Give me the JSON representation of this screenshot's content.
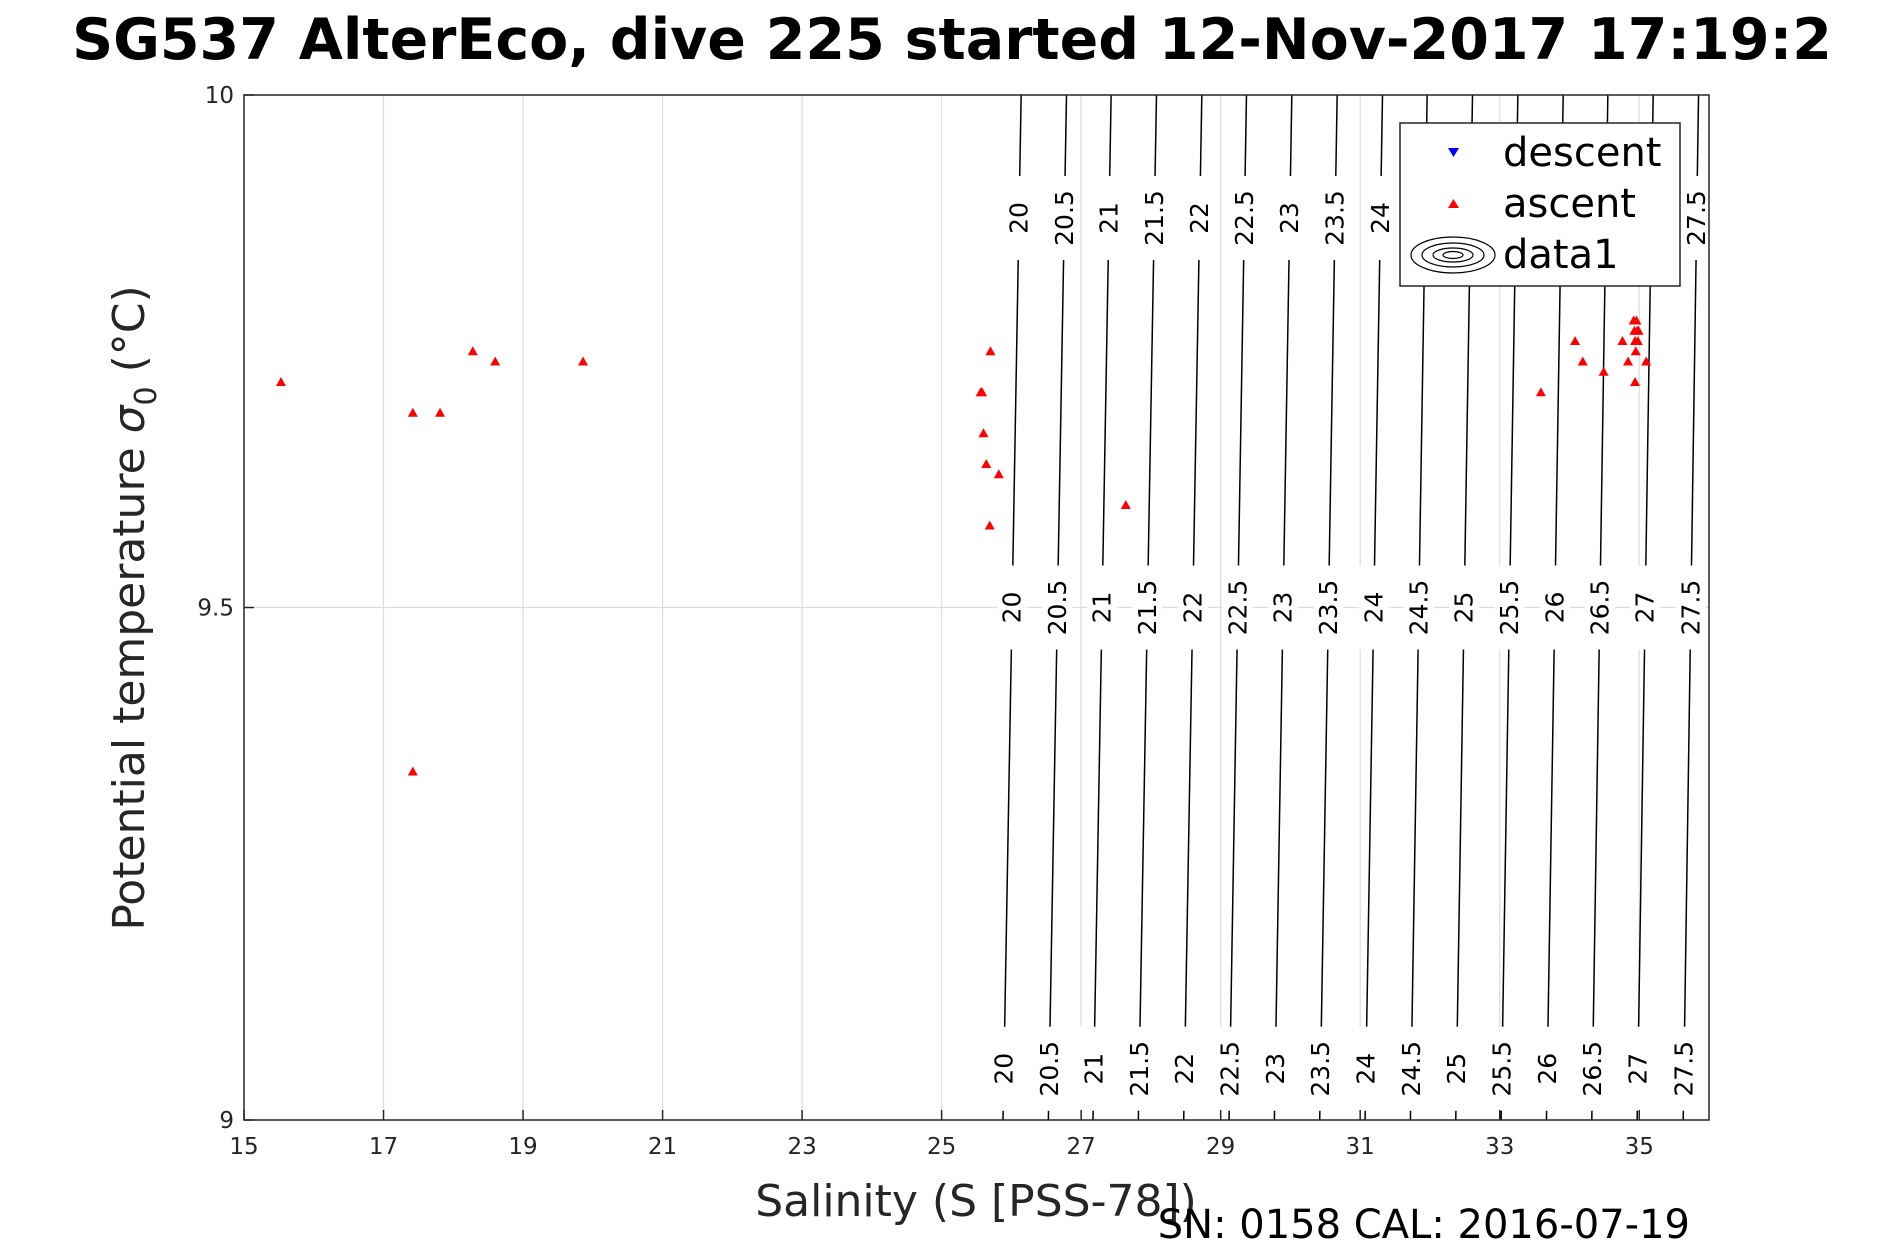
{
  "chart_data": {
    "type": "scatter",
    "title": "SG537 AlterEco, dive 225 started 12-Nov-2017 17:19:2",
    "xlabel": "Salinity (S [PSS-78])",
    "ylabel_main": "Potential temperature",
    "ylabel_sigma": "σ",
    "ylabel_sub": "0",
    "ylabel_unit": "(°C)",
    "footer": "SN: 0158  CAL: 2016-07-19",
    "xlim": [
      15,
      36
    ],
    "ylim": [
      9,
      10
    ],
    "x_ticks": [
      15,
      17,
      19,
      21,
      23,
      25,
      27,
      29,
      31,
      33,
      35
    ],
    "y_ticks": [
      9,
      9.5,
      10
    ],
    "y_tick_labels": [
      "9",
      "9.5",
      "10"
    ],
    "grid": true,
    "legend": {
      "position": "top-right",
      "entries": [
        {
          "label": "descent",
          "marker": "triangle-down",
          "color": "#0000ff"
        },
        {
          "label": "ascent",
          "marker": "triangle-up",
          "color": "#ff0000"
        },
        {
          "label": "data1",
          "marker": "contour"
        }
      ]
    },
    "series": [
      {
        "name": "descent",
        "marker": "triangle-down",
        "color": "#0000ff",
        "points": []
      },
      {
        "name": "ascent",
        "marker": "triangle-up",
        "color": "#ff0000",
        "points": [
          [
            15.53,
            9.72
          ],
          [
            17.42,
            9.69
          ],
          [
            17.81,
            9.69
          ],
          [
            18.28,
            9.75
          ],
          [
            18.6,
            9.74
          ],
          [
            19.86,
            9.74
          ],
          [
            17.42,
            9.34
          ],
          [
            25.7,
            9.75
          ],
          [
            25.58,
            9.71
          ],
          [
            25.56,
            9.71
          ],
          [
            25.6,
            9.67
          ],
          [
            25.64,
            9.64
          ],
          [
            25.82,
            9.63
          ],
          [
            25.69,
            9.58
          ],
          [
            27.64,
            9.6
          ],
          [
            33.59,
            9.71
          ],
          [
            34.08,
            9.76
          ],
          [
            34.19,
            9.74
          ],
          [
            34.49,
            9.73
          ],
          [
            34.76,
            9.76
          ],
          [
            34.84,
            9.74
          ],
          [
            34.92,
            9.78
          ],
          [
            34.93,
            9.77
          ],
          [
            34.94,
            9.76
          ],
          [
            34.95,
            9.75
          ],
          [
            34.96,
            9.78
          ],
          [
            34.97,
            9.77
          ],
          [
            34.98,
            9.76
          ],
          [
            34.99,
            9.77
          ],
          [
            34.94,
            9.72
          ],
          [
            35.1,
            9.74
          ]
        ]
      }
    ],
    "contours": {
      "levels": [
        20,
        20.5,
        21,
        21.5,
        22,
        22.5,
        23,
        23.5,
        24,
        24.5,
        25,
        25.5,
        26,
        26.5,
        27,
        27.5
      ],
      "level_labels": [
        "20",
        "20.5",
        "21",
        "21.5",
        "22",
        "22.5",
        "23",
        "23.5",
        "24",
        "24.5",
        "25",
        "25.5",
        "26",
        "26.5",
        "27",
        "27.5"
      ],
      "salinity_at_t9": [
        25.88,
        26.53,
        27.17,
        27.82,
        28.47,
        29.12,
        29.77,
        30.42,
        31.07,
        31.72,
        32.37,
        33.02,
        33.67,
        34.32,
        34.97,
        35.63
      ],
      "salinity_at_t10": [
        26.14,
        26.79,
        27.43,
        28.08,
        28.73,
        29.37,
        30.02,
        30.67,
        31.32,
        31.96,
        32.61,
        33.26,
        33.91,
        34.55,
        35.2,
        35.85
      ],
      "label_temperatures": [
        9.88,
        9.5,
        9.05
      ],
      "labels_hidden_by_legend_top_row": [
        "24.5",
        "25",
        "25.5",
        "26",
        "26.5",
        "27"
      ]
    }
  }
}
